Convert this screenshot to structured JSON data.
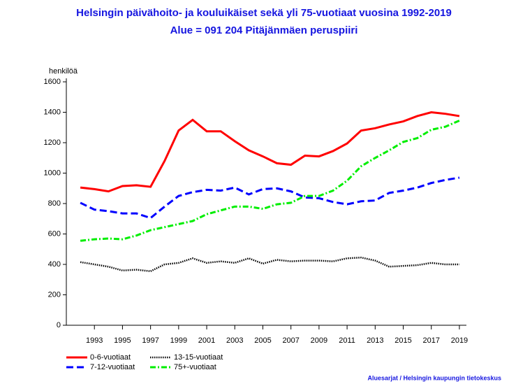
{
  "chart_data": {
    "type": "line",
    "title": "Helsingin päivähoito- ja kouluikäiset sekä yli 75-vuotiaat vuosina 1992-2019",
    "subtitle": "Alue = 091 204 Pitäjänmäen peruspiiri",
    "y_label": "henkilöä",
    "source": "Aluesarjat / Helsingin kaupungin tietokeskus",
    "x": [
      1992,
      1993,
      1994,
      1995,
      1996,
      1997,
      1998,
      1999,
      2000,
      2001,
      2002,
      2003,
      2004,
      2005,
      2006,
      2007,
      2008,
      2009,
      2010,
      2011,
      2012,
      2013,
      2014,
      2015,
      2016,
      2017,
      2018,
      2019
    ],
    "xlim": [
      1991,
      2019.5
    ],
    "xticks": [
      1993,
      1995,
      1997,
      1999,
      2001,
      2003,
      2005,
      2007,
      2009,
      2011,
      2013,
      2015,
      2017,
      2019
    ],
    "ylim": [
      0,
      1600
    ],
    "yticks": [
      0,
      200,
      400,
      600,
      800,
      1000,
      1200,
      1400,
      1600
    ],
    "series": [
      {
        "name": "0-6-vuotiaat",
        "color": "#ff0000",
        "dash": "solid",
        "values": [
          905,
          895,
          880,
          915,
          920,
          910,
          1080,
          1280,
          1350,
          1275,
          1275,
          1210,
          1150,
          1110,
          1065,
          1055,
          1115,
          1110,
          1145,
          1195,
          1280,
          1295,
          1320,
          1340,
          1375,
          1400,
          1390,
          1375
        ]
      },
      {
        "name": "13-15-vuotiaat",
        "color": "#000000",
        "dash": "dotted",
        "values": [
          415,
          400,
          385,
          360,
          365,
          355,
          400,
          410,
          440,
          410,
          420,
          410,
          440,
          405,
          430,
          420,
          425,
          425,
          420,
          440,
          445,
          425,
          385,
          390,
          395,
          410,
          400,
          400
        ]
      },
      {
        "name": "7-12-vuotiaat",
        "color": "#0000ff",
        "dash": "dashed",
        "values": [
          805,
          760,
          750,
          735,
          735,
          705,
          780,
          850,
          875,
          890,
          885,
          905,
          860,
          895,
          900,
          880,
          840,
          835,
          810,
          795,
          815,
          820,
          870,
          885,
          905,
          935,
          955,
          970
        ]
      },
      {
        "name": "75+-vuotiaat",
        "color": "#00ee00",
        "dash": "dashdot",
        "values": [
          555,
          565,
          570,
          565,
          590,
          625,
          645,
          665,
          685,
          730,
          755,
          780,
          780,
          765,
          795,
          805,
          850,
          850,
          885,
          950,
          1045,
          1100,
          1150,
          1205,
          1230,
          1285,
          1305,
          1345
        ]
      }
    ]
  }
}
